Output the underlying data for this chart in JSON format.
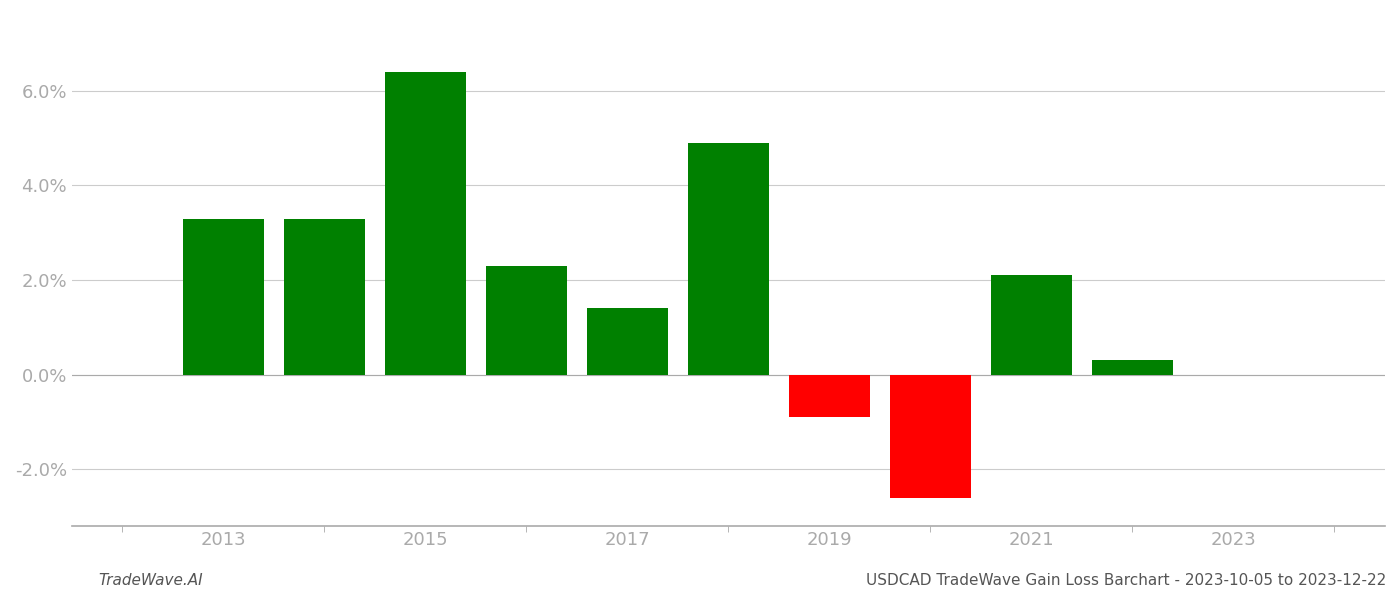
{
  "years": [
    2013,
    2014,
    2015,
    2016,
    2017,
    2018,
    2019,
    2020,
    2021,
    2022
  ],
  "values": [
    0.033,
    0.033,
    0.064,
    0.023,
    0.014,
    0.049,
    -0.009,
    -0.026,
    0.021,
    0.003
  ],
  "positive_color": "#008000",
  "negative_color": "#ff0000",
  "background_color": "#ffffff",
  "title": "USDCAD TradeWave Gain Loss Barchart - 2023-10-05 to 2023-12-22",
  "footer_left": "TradeWave.AI",
  "ylim": [
    -0.032,
    0.076
  ],
  "yticks": [
    -0.02,
    0.0,
    0.02,
    0.04,
    0.06
  ],
  "xtick_labels": [
    "2013",
    "2015",
    "2017",
    "2019",
    "2021",
    "2023"
  ],
  "xtick_positions": [
    2013,
    2015,
    2017,
    2019,
    2021,
    2023
  ],
  "xminor_ticks": [
    2012,
    2013,
    2014,
    2015,
    2016,
    2017,
    2018,
    2019,
    2020,
    2021,
    2022,
    2023,
    2024
  ],
  "grid_color": "#cccccc",
  "axis_label_color": "#aaaaaa",
  "bar_width": 0.8,
  "xlim": [
    2011.5,
    2024.5
  ]
}
